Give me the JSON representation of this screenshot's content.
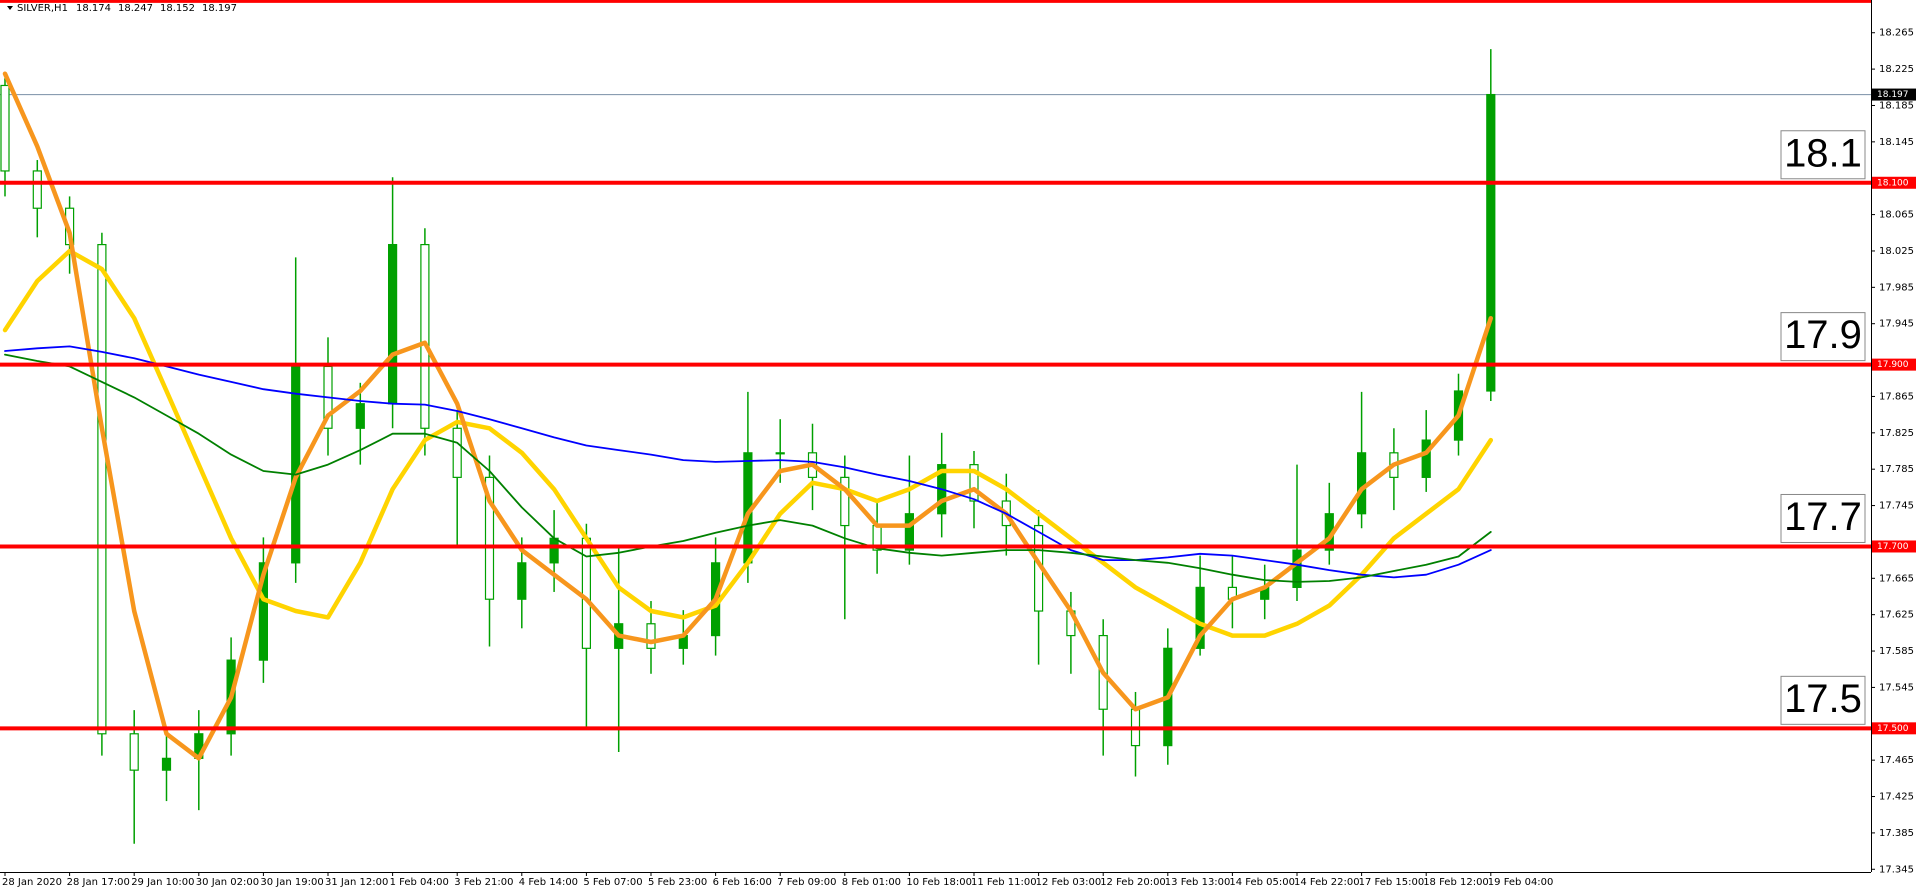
{
  "chart_data": {
    "type": "candlestick",
    "title": "SILVER,H1",
    "last_ohlc": [
      18.174,
      18.247,
      18.152,
      18.197
    ],
    "categories": [
      "28 Jan 2020",
      null,
      "28 Jan 17:00",
      null,
      "29 Jan 10:00",
      null,
      "30 Jan 02:00",
      null,
      "30 Jan 19:00",
      null,
      "31 Jan 12:00",
      null,
      "1 Feb 04:00",
      null,
      "3 Feb 21:00",
      null,
      "4 Feb 14:00",
      null,
      "5 Feb 07:00",
      null,
      "5 Feb 23:00",
      null,
      "6 Feb 16:00",
      null,
      "7 Feb 09:00",
      null,
      "8 Feb 01:00",
      null,
      "10 Feb 18:00",
      null,
      "11 Feb 11:00",
      null,
      "12 Feb 03:00",
      null,
      "12 Feb 20:00",
      null,
      "13 Feb 13:00",
      null,
      "14 Feb 05:00",
      null,
      "14 Feb 22:00",
      null,
      "17 Feb 15:00",
      null,
      "18 Feb 12:00",
      null,
      "19 Feb 04:00"
    ],
    "open": [
      18.207,
      18.113,
      18.072,
      18.032,
      17.494,
      17.454,
      17.467,
      17.494,
      17.575,
      17.682,
      17.898,
      17.83,
      17.857,
      18.032,
      17.83,
      17.776,
      17.642,
      17.682,
      17.709,
      17.588,
      17.615,
      17.588,
      17.602,
      17.682,
      17.803,
      17.803,
      17.776,
      17.723,
      17.696,
      17.736,
      17.79,
      17.75,
      17.723,
      17.629,
      17.602,
      17.521,
      17.481,
      17.588,
      17.655,
      17.642,
      17.655,
      17.696,
      17.736,
      17.803,
      17.776,
      17.817,
      17.871
    ],
    "high": [
      18.215,
      18.125,
      18.085,
      18.045,
      17.52,
      17.495,
      17.52,
      17.6,
      17.71,
      18.018,
      17.93,
      17.88,
      18.106,
      18.05,
      17.85,
      17.8,
      17.71,
      17.74,
      17.725,
      17.7,
      17.64,
      17.63,
      17.71,
      17.87,
      17.84,
      17.835,
      17.8,
      17.75,
      17.8,
      17.825,
      17.805,
      17.78,
      17.74,
      17.65,
      17.62,
      17.54,
      17.61,
      17.69,
      17.69,
      17.68,
      17.79,
      17.77,
      17.87,
      17.83,
      17.85,
      17.89,
      18.247
    ],
    "low": [
      18.085,
      18.04,
      18.0,
      17.47,
      17.373,
      17.42,
      17.41,
      17.47,
      17.55,
      17.66,
      17.8,
      17.79,
      17.83,
      17.8,
      17.7,
      17.59,
      17.61,
      17.65,
      17.5,
      17.474,
      17.56,
      17.57,
      17.58,
      17.66,
      17.77,
      17.74,
      17.62,
      17.67,
      17.68,
      17.71,
      17.72,
      17.69,
      17.57,
      17.56,
      17.47,
      17.447,
      17.46,
      17.58,
      17.61,
      17.62,
      17.64,
      17.68,
      17.72,
      17.74,
      17.76,
      17.8,
      17.86
    ],
    "close": [
      18.113,
      18.072,
      18.032,
      17.494,
      17.454,
      17.467,
      17.494,
      17.575,
      17.682,
      17.898,
      17.83,
      17.857,
      18.032,
      17.83,
      17.776,
      17.642,
      17.682,
      17.709,
      17.588,
      17.615,
      17.588,
      17.602,
      17.682,
      17.803,
      17.803,
      17.776,
      17.723,
      17.696,
      17.736,
      17.79,
      17.75,
      17.723,
      17.629,
      17.602,
      17.521,
      17.481,
      17.588,
      17.655,
      17.642,
      17.655,
      17.696,
      17.736,
      17.803,
      17.776,
      17.817,
      17.871,
      18.197
    ],
    "color": "#00a000",
    "series": [
      {
        "color": "#ffd400",
        "values": [
          17.938,
          17.992,
          18.025,
          18.005,
          17.951,
          17.871,
          17.79,
          17.709,
          17.642,
          17.629,
          17.622,
          17.682,
          17.763,
          17.817,
          17.837,
          17.83,
          17.803,
          17.763,
          17.709,
          17.655,
          17.629,
          17.622,
          17.635,
          17.682,
          17.736,
          17.77,
          17.763,
          17.75,
          17.763,
          17.783,
          17.783,
          17.763,
          17.736,
          17.709,
          17.682,
          17.655,
          17.635,
          17.615,
          17.602,
          17.602,
          17.615,
          17.635,
          17.669,
          17.709,
          17.736,
          17.763,
          17.817
        ]
      },
      {
        "color": "#f7961d",
        "values": [
          18.22,
          18.14,
          18.045,
          17.83,
          17.629,
          17.494,
          17.467,
          17.534,
          17.669,
          17.776,
          17.844,
          17.871,
          17.911,
          17.924,
          17.857,
          17.75,
          17.696,
          17.669,
          17.642,
          17.602,
          17.595,
          17.602,
          17.642,
          17.736,
          17.783,
          17.79,
          17.763,
          17.723,
          17.723,
          17.75,
          17.763,
          17.736,
          17.682,
          17.629,
          17.561,
          17.521,
          17.534,
          17.602,
          17.642,
          17.655,
          17.682,
          17.709,
          17.763,
          17.79,
          17.803,
          17.844,
          17.951
        ]
      },
      {
        "color": "#0000ff",
        "values": [
          17.915,
          17.918,
          17.92,
          17.914,
          17.907,
          17.898,
          17.889,
          17.881,
          17.873,
          17.868,
          17.864,
          17.86,
          17.857,
          17.856,
          17.849,
          17.84,
          17.83,
          17.82,
          17.811,
          17.806,
          17.801,
          17.795,
          17.793,
          17.794,
          17.795,
          17.793,
          17.787,
          17.779,
          17.772,
          17.763,
          17.752,
          17.736,
          17.716,
          17.696,
          17.685,
          17.685,
          17.688,
          17.692,
          17.69,
          17.685,
          17.68,
          17.674,
          17.669,
          17.666,
          17.669,
          17.68,
          17.696
        ]
      },
      {
        "color": "#008000",
        "values": [
          17.911,
          17.904,
          17.898,
          17.881,
          17.864,
          17.844,
          17.824,
          17.801,
          17.783,
          17.779,
          17.79,
          17.806,
          17.824,
          17.824,
          17.814,
          17.783,
          17.743,
          17.709,
          17.689,
          17.693,
          17.7,
          17.706,
          17.715,
          17.723,
          17.729,
          17.723,
          17.709,
          17.698,
          17.693,
          17.69,
          17.693,
          17.696,
          17.696,
          17.693,
          17.689,
          17.685,
          17.682,
          17.676,
          17.669,
          17.663,
          17.661,
          17.662,
          17.666,
          17.673,
          17.68,
          17.689,
          17.716
        ]
      }
    ],
    "levels": [
      {
        "value": 18.3
      },
      {
        "value": 18.1,
        "label": "18.100"
      },
      {
        "value": 17.9,
        "label": "17.900"
      },
      {
        "value": 17.7,
        "label": "17.700"
      },
      {
        "value": 17.5,
        "label": "17.500"
      }
    ],
    "level_color": "#ff0000",
    "current_price": 18.197,
    "ylim": [
      17.342,
      18.301
    ],
    "yticks": [
      17.345,
      17.385,
      17.425,
      17.465,
      17.545,
      17.585,
      17.625,
      17.665,
      17.745,
      17.785,
      17.825,
      17.865,
      17.945,
      17.985,
      18.025,
      18.065,
      18.145,
      18.185,
      18.225,
      18.265
    ]
  }
}
